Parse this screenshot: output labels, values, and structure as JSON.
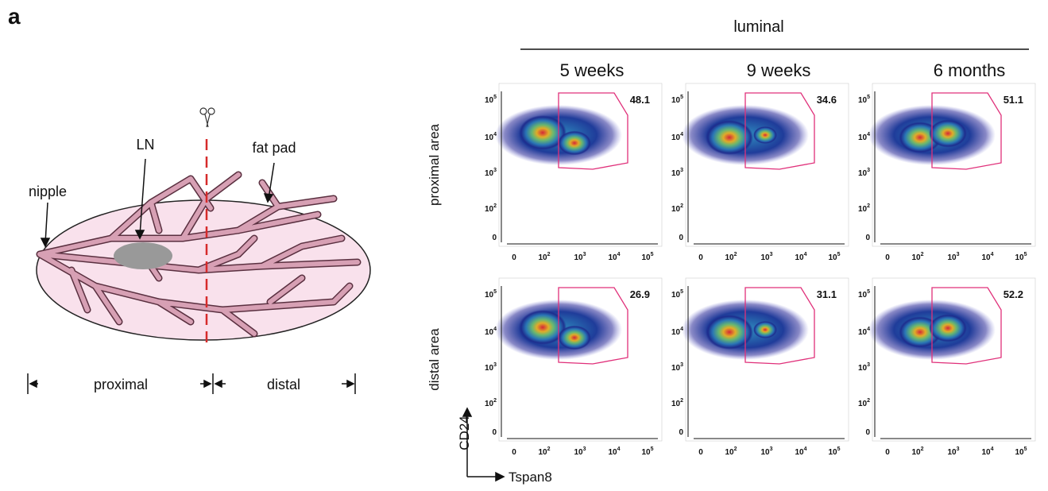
{
  "panel_label": "a",
  "diagram": {
    "labels": {
      "ln": "LN",
      "fat_pad": "fat pad",
      "nipple": "nipple",
      "proximal": "proximal",
      "distal": "distal"
    }
  },
  "flow": {
    "group": "luminal",
    "columns": [
      "5 weeks",
      "9 weeks",
      "6 months"
    ],
    "rows": [
      "proximal area",
      "distal area"
    ],
    "gates": [
      [
        48.1,
        34.6,
        51.1
      ],
      [
        26.9,
        31.1,
        52.2
      ]
    ],
    "x_label": "Tspan8",
    "y_label": "CD24",
    "x_ticks": [
      "0",
      {
        "base": "10",
        "exp": "2"
      },
      {
        "base": "10",
        "exp": "3"
      },
      {
        "base": "10",
        "exp": "4"
      },
      {
        "base": "10",
        "exp": "5"
      }
    ],
    "y_ticks": [
      {
        "base": "10",
        "exp": "5"
      },
      {
        "base": "10",
        "exp": "4"
      },
      {
        "base": "10",
        "exp": "3"
      },
      {
        "base": "10",
        "exp": "2"
      },
      "0"
    ]
  }
}
